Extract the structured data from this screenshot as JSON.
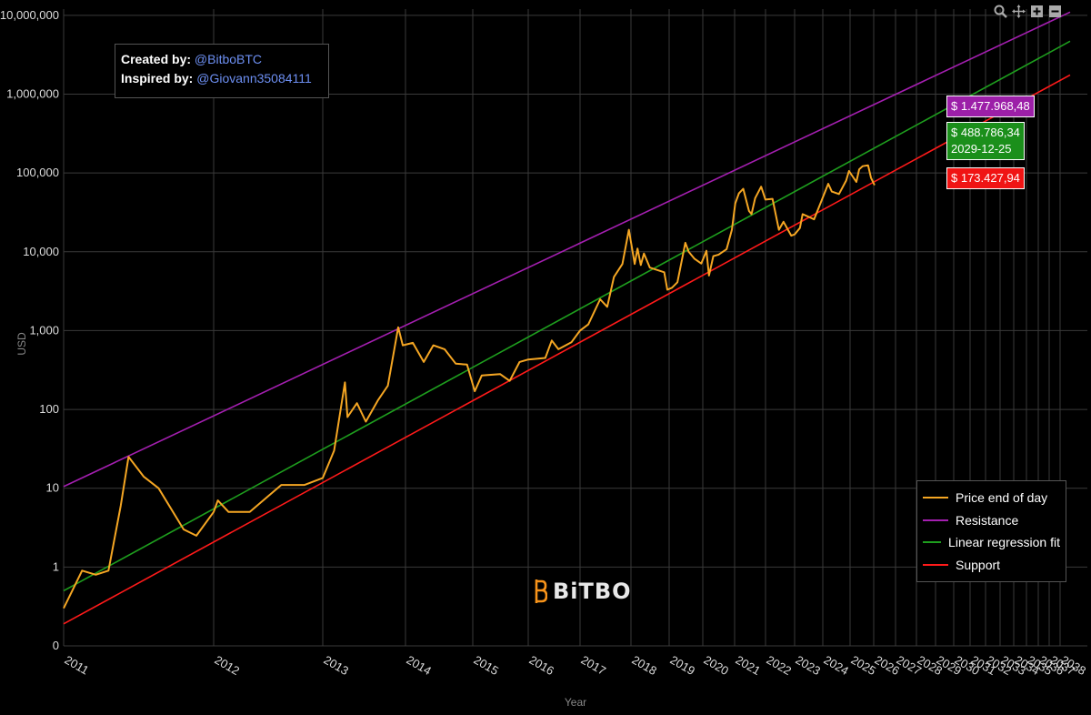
{
  "credits": {
    "created_label": "Created by:",
    "created_handle": "@BitboBTC",
    "inspired_label": "Inspired by:",
    "inspired_handle": "@Giovann35084111"
  },
  "brand": {
    "name": "BiTBO",
    "color": "#f7931a"
  },
  "tags": {
    "resistance": "$ 1.477.968,48",
    "fit": "$ 488.786,34",
    "fit_date": "2029-12-25",
    "support": "$ 173.427,94"
  },
  "toolbar": {
    "icons": [
      "zoom-icon",
      "pan-icon",
      "zoom-in-icon",
      "zoom-out-icon"
    ]
  },
  "chart_data": {
    "type": "line",
    "xlabel": "Year",
    "ylabel": "USD",
    "yscale": "log",
    "ylim": [
      0.1,
      12000000
    ],
    "y_ticks": [
      {
        "value": 0.1,
        "label": "0"
      },
      {
        "value": 1,
        "label": "1"
      },
      {
        "value": 10,
        "label": "10"
      },
      {
        "value": 100,
        "label": "100"
      },
      {
        "value": 1000,
        "label": "1,000"
      },
      {
        "value": 10000,
        "label": "10,000"
      },
      {
        "value": 100000,
        "label": "100,000"
      },
      {
        "value": 1000000,
        "label": "1,000,000"
      },
      {
        "value": 10000000,
        "label": "10,000,000"
      }
    ],
    "x_ticks": [
      "2011",
      "2012",
      "2013",
      "2014",
      "2015",
      "2016",
      "2017",
      "2018",
      "2019",
      "2020",
      "2021",
      "2022",
      "2023",
      "2024",
      "2025",
      "2026",
      "2027",
      "2028",
      "2029",
      "2030",
      "2031",
      "2032",
      "2033",
      "2034",
      "2035",
      "2036",
      "2037",
      "2038"
    ],
    "grid": true,
    "legend_position": "bottom-right",
    "series": [
      {
        "name": "Price end of day",
        "color": "#f5a623",
        "points": [
          [
            "2011-01-01",
            0.3
          ],
          [
            "2011-02-15",
            0.9
          ],
          [
            "2011-03-20",
            0.8
          ],
          [
            "2011-04-20",
            0.9
          ],
          [
            "2011-05-20",
            6
          ],
          [
            "2011-06-08",
            25
          ],
          [
            "2011-07-15",
            14
          ],
          [
            "2011-08-20",
            10
          ],
          [
            "2011-10-20",
            3
          ],
          [
            "2011-11-20",
            2.5
          ],
          [
            "2012-01-01",
            5
          ],
          [
            "2012-01-15",
            7
          ],
          [
            "2012-02-20",
            5
          ],
          [
            "2012-05-01",
            5
          ],
          [
            "2012-08-15",
            11
          ],
          [
            "2012-11-01",
            11
          ],
          [
            "2013-01-01",
            13.5
          ],
          [
            "2013-02-20",
            30
          ],
          [
            "2013-04-09",
            220
          ],
          [
            "2013-04-20",
            80
          ],
          [
            "2013-06-01",
            120
          ],
          [
            "2013-07-10",
            70
          ],
          [
            "2013-09-01",
            130
          ],
          [
            "2013-10-15",
            200
          ],
          [
            "2013-11-30",
            1100
          ],
          [
            "2013-12-20",
            650
          ],
          [
            "2014-02-10",
            700
          ],
          [
            "2014-04-10",
            400
          ],
          [
            "2014-06-01",
            650
          ],
          [
            "2014-08-01",
            580
          ],
          [
            "2014-10-01",
            380
          ],
          [
            "2014-12-01",
            370
          ],
          [
            "2015-01-14",
            170
          ],
          [
            "2015-03-01",
            270
          ],
          [
            "2015-07-01",
            280
          ],
          [
            "2015-09-01",
            230
          ],
          [
            "2015-11-05",
            400
          ],
          [
            "2016-01-01",
            430
          ],
          [
            "2016-05-01",
            450
          ],
          [
            "2016-06-15",
            750
          ],
          [
            "2016-08-01",
            580
          ],
          [
            "2016-11-01",
            710
          ],
          [
            "2017-01-01",
            1000
          ],
          [
            "2017-03-01",
            1200
          ],
          [
            "2017-05-25",
            2500
          ],
          [
            "2017-07-15",
            2000
          ],
          [
            "2017-09-01",
            4800
          ],
          [
            "2017-11-01",
            7000
          ],
          [
            "2017-12-17",
            19000
          ],
          [
            "2018-02-06",
            7000
          ],
          [
            "2018-03-05",
            11000
          ],
          [
            "2018-04-05",
            6800
          ],
          [
            "2018-05-05",
            9500
          ],
          [
            "2018-07-01",
            6300
          ],
          [
            "2018-11-15",
            5500
          ],
          [
            "2018-12-15",
            3300
          ],
          [
            "2019-02-01",
            3500
          ],
          [
            "2019-04-01",
            4100
          ],
          [
            "2019-06-26",
            13000
          ],
          [
            "2019-08-01",
            10000
          ],
          [
            "2019-10-01",
            8200
          ],
          [
            "2019-12-15",
            7100
          ],
          [
            "2020-02-12",
            10300
          ],
          [
            "2020-03-12",
            5000
          ],
          [
            "2020-05-01",
            8800
          ],
          [
            "2020-07-01",
            9200
          ],
          [
            "2020-10-01",
            10800
          ],
          [
            "2020-12-01",
            19000
          ],
          [
            "2021-01-08",
            41000
          ],
          [
            "2021-02-20",
            55000
          ],
          [
            "2021-04-13",
            63000
          ],
          [
            "2021-06-20",
            33000
          ],
          [
            "2021-07-20",
            30000
          ],
          [
            "2021-09-01",
            48000
          ],
          [
            "2021-11-10",
            67000
          ],
          [
            "2021-12-31",
            46000
          ],
          [
            "2022-03-30",
            47000
          ],
          [
            "2022-06-18",
            19000
          ],
          [
            "2022-08-15",
            24000
          ],
          [
            "2022-11-20",
            16000
          ],
          [
            "2023-01-01",
            16600
          ],
          [
            "2023-03-10",
            20000
          ],
          [
            "2023-04-15",
            30000
          ],
          [
            "2023-09-10",
            25800
          ],
          [
            "2023-12-10",
            43000
          ],
          [
            "2024-03-14",
            73000
          ],
          [
            "2024-05-01",
            58000
          ],
          [
            "2024-08-05",
            54000
          ],
          [
            "2024-11-10",
            80000
          ],
          [
            "2024-12-17",
            106000
          ],
          [
            "2025-04-08",
            77000
          ],
          [
            "2025-05-22",
            111000
          ],
          [
            "2025-07-14",
            122000
          ],
          [
            "2025-10-06",
            125000
          ],
          [
            "2025-11-20",
            87000
          ],
          [
            "2026-01-15",
            70000
          ]
        ]
      },
      {
        "name": "Resistance",
        "color": "#a41fb0",
        "points": [
          [
            "2011-01-01",
            10.5
          ],
          [
            "2038-12-31",
            11000000
          ]
        ]
      },
      {
        "name": "Linear regression fit",
        "color": "#1e9e1e",
        "points": [
          [
            "2011-01-01",
            0.5
          ],
          [
            "2038-12-31",
            4700000
          ]
        ]
      },
      {
        "name": "Support",
        "color": "#ff1a1a",
        "points": [
          [
            "2011-01-01",
            0.19
          ],
          [
            "2038-12-31",
            1750000
          ]
        ]
      }
    ]
  }
}
